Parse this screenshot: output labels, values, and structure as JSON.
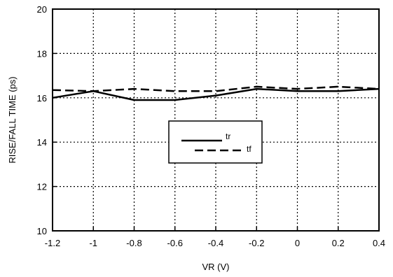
{
  "chart_data": {
    "type": "line",
    "title": "",
    "xlabel": "VR (V)",
    "ylabel": "RISE/FALL TIME (ps)",
    "xlim": [
      -1.2,
      0.4
    ],
    "ylim": [
      10,
      20
    ],
    "x_ticks": [
      "-1.2",
      "-1",
      "-0.8",
      "-0.6",
      "-0.4",
      "-0.2",
      "0",
      "0.2",
      "0.4"
    ],
    "y_ticks": [
      "10",
      "12",
      "14",
      "16",
      "18",
      "20"
    ],
    "grid": true,
    "grid_style": "dotted",
    "legend": "center",
    "series": [
      {
        "name": "tr",
        "style": "solid",
        "color": "#000000",
        "x": [
          -1.2,
          -1.0,
          -0.8,
          -0.6,
          -0.4,
          -0.2,
          0.0,
          0.2,
          0.4
        ],
        "y": [
          16.0,
          16.3,
          15.9,
          15.9,
          16.1,
          16.4,
          16.3,
          16.3,
          16.4
        ]
      },
      {
        "name": "tf",
        "style": "dashed",
        "color": "#000000",
        "x": [
          -1.2,
          -1.0,
          -0.8,
          -0.6,
          -0.4,
          -0.2,
          0.0,
          0.2,
          0.4
        ],
        "y": [
          16.35,
          16.3,
          16.4,
          16.3,
          16.3,
          16.5,
          16.4,
          16.5,
          16.4
        ]
      }
    ]
  }
}
